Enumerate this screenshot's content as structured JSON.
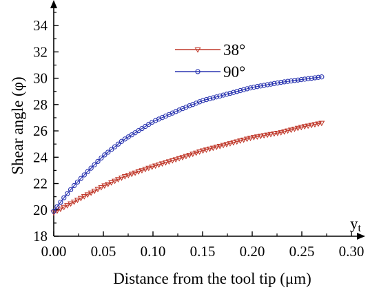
{
  "chart_data": {
    "type": "line",
    "xlabel": "Distance from the tool tip (μm)",
    "ylabel": "Shear angle (φ)",
    "axis_marker": {
      "main": "y",
      "sub": "t"
    },
    "xlim": [
      0,
      0.3
    ],
    "ylim": [
      18,
      35
    ],
    "xticks": [
      "0.00",
      "0.05",
      "0.10",
      "0.15",
      "0.20",
      "0.25",
      "0.30"
    ],
    "yticks": [
      "18",
      "20",
      "22",
      "24",
      "26",
      "28",
      "30",
      "32",
      "34"
    ],
    "legend_position": "top-center",
    "series": [
      {
        "name": "38°",
        "color": "#c0392b",
        "marker": "triangle-down",
        "x_start": 0.0,
        "x_end": 0.27,
        "n_points": 80,
        "x": [
          0,
          0.03,
          0.05,
          0.07,
          0.1,
          0.13,
          0.15,
          0.18,
          0.2,
          0.23,
          0.25,
          0.27
        ],
        "y": [
          19.8,
          21.0,
          21.8,
          22.5,
          23.3,
          24.0,
          24.5,
          25.1,
          25.5,
          25.9,
          26.3,
          26.6
        ]
      },
      {
        "name": "90°",
        "color": "#2a35b0",
        "marker": "circle",
        "x_start": 0.0,
        "x_end": 0.27,
        "n_points": 80,
        "x": [
          0,
          0.01,
          0.02,
          0.03,
          0.05,
          0.07,
          0.1,
          0.13,
          0.15,
          0.18,
          0.2,
          0.23,
          0.25,
          0.27
        ],
        "y": [
          19.9,
          20.9,
          21.8,
          22.6,
          24.1,
          25.3,
          26.7,
          27.7,
          28.3,
          28.9,
          29.3,
          29.7,
          29.9,
          30.1
        ]
      }
    ]
  }
}
